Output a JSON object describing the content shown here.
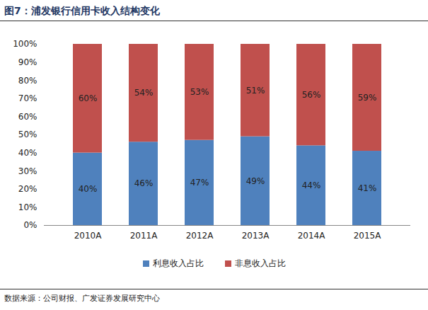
{
  "chart_data": {
    "type": "bar",
    "stacked": true,
    "title": "图7：浦发银行信用卡收入结构变化",
    "source": "数据来源：公司财报、广发证券发展研究中心",
    "categories": [
      "2010A",
      "2011A",
      "2012A",
      "2013A",
      "2014A",
      "2015A"
    ],
    "series": [
      {
        "name": "利息收入占比",
        "color": "#4f81bd",
        "values": [
          40,
          46,
          47,
          49,
          44,
          41
        ],
        "value_labels": [
          "40%",
          "46%",
          "47%",
          "49%",
          "44%",
          "41%"
        ]
      },
      {
        "name": "非息收入占比",
        "color": "#c0504d",
        "values": [
          60,
          54,
          53,
          51,
          56,
          59
        ],
        "value_labels": [
          "60%",
          "54%",
          "53%",
          "51%",
          "56%",
          "59%"
        ]
      }
    ],
    "ylim": [
      0,
      100
    ],
    "yticks": [
      {
        "value": 0,
        "label": "0%"
      },
      {
        "value": 10,
        "label": "10%"
      },
      {
        "value": 20,
        "label": "20%"
      },
      {
        "value": 30,
        "label": "30%"
      },
      {
        "value": 40,
        "label": "40%"
      },
      {
        "value": 50,
        "label": "50%"
      },
      {
        "value": 60,
        "label": "60%"
      },
      {
        "value": 70,
        "label": "70%"
      },
      {
        "value": 80,
        "label": "80%"
      },
      {
        "value": 90,
        "label": "90%"
      },
      {
        "value": 100,
        "label": "100%"
      }
    ],
    "grid": false,
    "data_labels": true,
    "legend": "bottom"
  }
}
